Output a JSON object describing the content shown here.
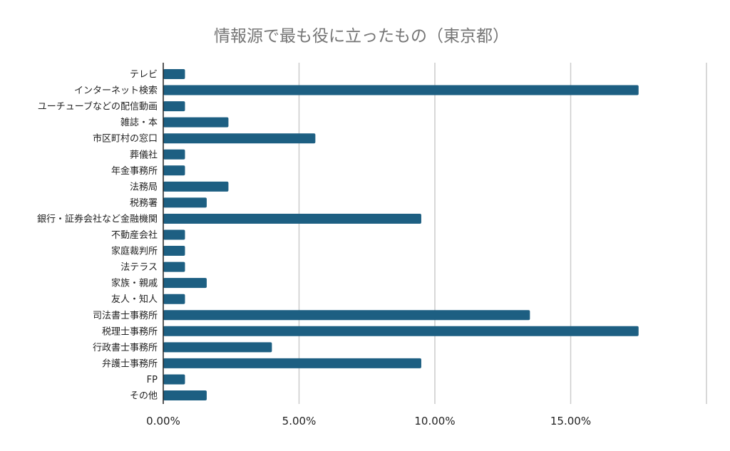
{
  "chart_data": {
    "type": "bar",
    "orientation": "horizontal",
    "title": "情報源で最も役に立ったもの（東京都）",
    "xlabel": "",
    "ylabel": "",
    "xlim": [
      0,
      20
    ],
    "x_ticks": [
      0,
      5,
      10,
      15,
      20
    ],
    "x_tick_labels": [
      "0.00%",
      "5.00%",
      "10.00%",
      "15.00%",
      ""
    ],
    "grid": true,
    "bar_color": "#1d5f82",
    "categories": [
      "テレビ",
      "インターネット検索",
      "ユーチューブなどの配信動画",
      "雑誌・本",
      "市区町村の窓口",
      "葬儀社",
      "年金事務所",
      "法務局",
      "税務署",
      "銀行・証券会社など金融機関",
      "不動産会社",
      "家庭裁判所",
      "法テラス",
      "家族・親戚",
      "友人・知人",
      "司法書士事務所",
      "税理士事務所",
      "行政書士事務所",
      "弁護士事務所",
      "FP",
      "その他"
    ],
    "values": [
      0.8,
      17.5,
      0.8,
      2.4,
      5.6,
      0.8,
      0.8,
      2.4,
      1.6,
      9.5,
      0.8,
      0.8,
      0.8,
      1.6,
      0.8,
      13.5,
      17.5,
      4.0,
      9.5,
      0.8,
      1.6
    ]
  }
}
